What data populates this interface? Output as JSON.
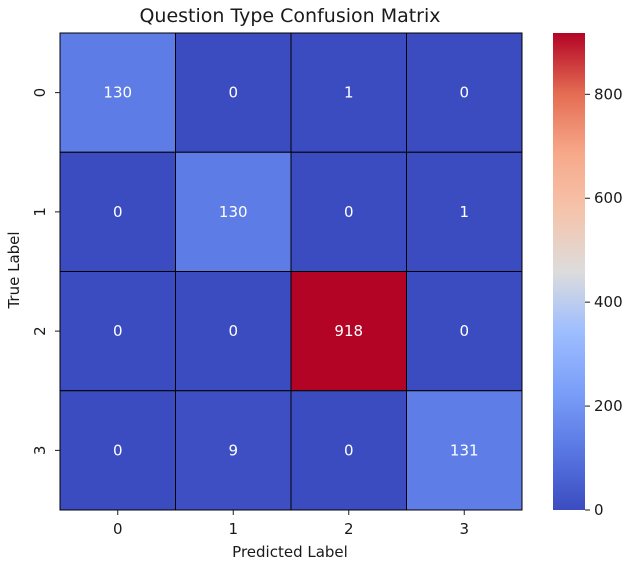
{
  "chart_data": {
    "type": "heatmap",
    "title": "Question Type Confusion Matrix",
    "xlabel": "Predicted Label",
    "ylabel": "True Label",
    "x_categories": [
      "0",
      "1",
      "2",
      "3"
    ],
    "y_categories": [
      "0",
      "1",
      "2",
      "3"
    ],
    "values": [
      [
        130,
        0,
        1,
        0
      ],
      [
        0,
        130,
        0,
        1
      ],
      [
        0,
        0,
        918,
        0
      ],
      [
        0,
        9,
        0,
        131
      ]
    ],
    "colormap": "coolwarm",
    "colorbar": {
      "range": [
        0,
        918
      ],
      "ticks": [
        0,
        200,
        400,
        600,
        800
      ]
    },
    "colors": {
      "low": "#3b4cc0",
      "high": "#b40426",
      "cell_border": "#000000",
      "cell_text": "#ffffff"
    }
  }
}
